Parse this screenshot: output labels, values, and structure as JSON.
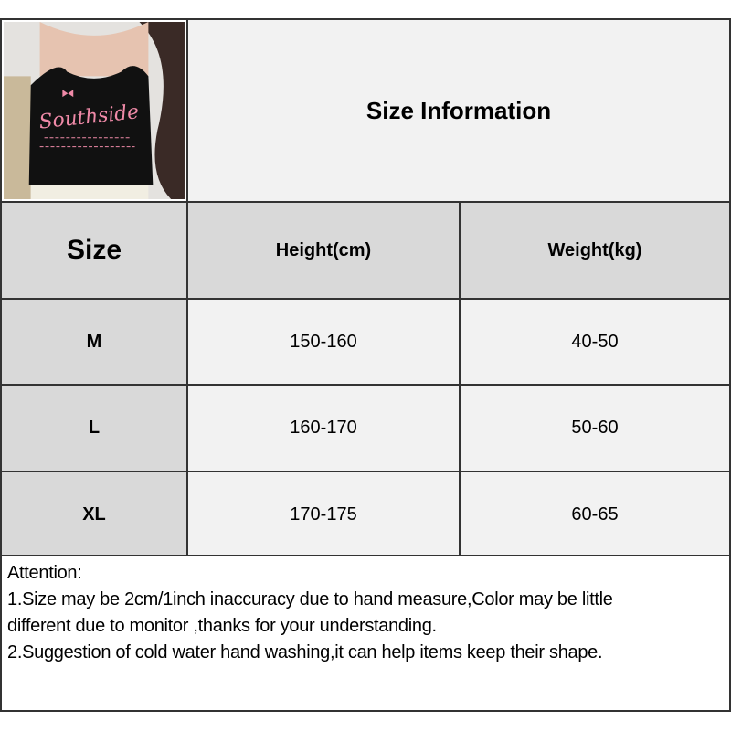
{
  "product_image": {
    "alt_lettering": "Southside",
    "colors": {
      "top": "#111111",
      "print": "#f08aa8"
    }
  },
  "title": "Size Information",
  "table": {
    "headers": [
      "Size",
      "Height(cm)",
      "Weight(kg)"
    ],
    "rows": [
      {
        "size": "M",
        "height": "150-160",
        "weight": "40-50"
      },
      {
        "size": "L",
        "height": "160-170",
        "weight": "50-60"
      },
      {
        "size": "XL",
        "height": "170-175",
        "weight": "60-65"
      }
    ]
  },
  "attention": {
    "heading": "Attention:",
    "lines": [
      "1.Size may be 2cm/1inch inaccuracy due to hand measure,Color may be little",
      "different due to monitor ,thanks for your understanding.",
      "2.Suggestion of cold water hand washing,it can help items keep their shape."
    ]
  },
  "colors": {
    "header_bg": "#d9d9d9",
    "cell_bg": "#f2f2f2",
    "border": "#333333"
  }
}
